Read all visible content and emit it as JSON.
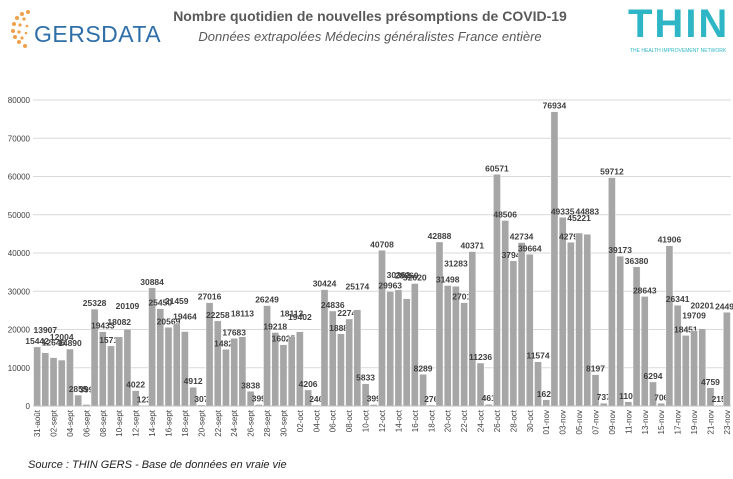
{
  "title": "Nombre quotidien de nouvelles présomptions de COVID-19",
  "subtitle": "Données extrapolées Médecins généralistes France entière",
  "source": "Source : THIN GERS - Base de données en vraie vie",
  "logos": {
    "left": "GERSDATA",
    "right": "THIN",
    "right_tagline": "THE HEALTH IMPROVEMENT NETWORK"
  },
  "colors": {
    "bar": "#a6a6a6",
    "bar_stroke": "#ffffff",
    "grid": "#d9d9d9",
    "label": "#404040",
    "axis_text": "#404040"
  },
  "chart_data": {
    "type": "bar",
    "ylim": [
      0,
      80000
    ],
    "yticks": [
      0,
      10000,
      20000,
      30000,
      40000,
      50000,
      60000,
      70000,
      80000
    ],
    "grid": true,
    "xtick_labels": [
      "31-août",
      "02-sept",
      "04-sept",
      "06-sept",
      "08-sept",
      "10-sept",
      "12-sept",
      "14-sept",
      "16-sept",
      "18-sept",
      "20-sept",
      "22-sept",
      "24-sept",
      "26-sept",
      "28-sept",
      "30-sept",
      "02-oct",
      "04-oct",
      "06-oct",
      "08-oct",
      "10-oct",
      "12-oct",
      "14-oct",
      "16-oct",
      "18-oct",
      "20-oct",
      "22-oct",
      "24-oct",
      "26-oct",
      "28-oct",
      "30-oct",
      "01-nov",
      "03-nov",
      "05-nov",
      "07-nov",
      "09-nov",
      "11-nov",
      "13-nov",
      "15-nov",
      "17-nov",
      "19-nov",
      "21-nov",
      "23-nov"
    ],
    "values": [
      15442,
      13907,
      12646,
      12004,
      14890,
      2855,
      399,
      25328,
      19433,
      15718,
      18082,
      20109,
      4022,
      123,
      30884,
      25450,
      20569,
      21459,
      19464,
      4912,
      307,
      27016,
      22258,
      14828,
      17683,
      18113,
      3838,
      399,
      26249,
      19218,
      16025,
      18113,
      19402,
      4206,
      246,
      30424,
      24836,
      18881,
      22749,
      25174,
      5833,
      399,
      40708,
      29963,
      30362,
      28060,
      32020,
      8289,
      276,
      42888,
      31498,
      31283,
      27016,
      40371,
      11236,
      461,
      60571,
      48506,
      37945,
      42734,
      39664,
      11574,
      1627,
      76934,
      49335,
      42796,
      45221,
      44883,
      8197,
      737,
      59712,
      39173,
      1105,
      36380,
      28643,
      6294,
      706,
      41906,
      26341,
      18451,
      19709,
      20201,
      4759,
      215,
      24499
    ]
  }
}
